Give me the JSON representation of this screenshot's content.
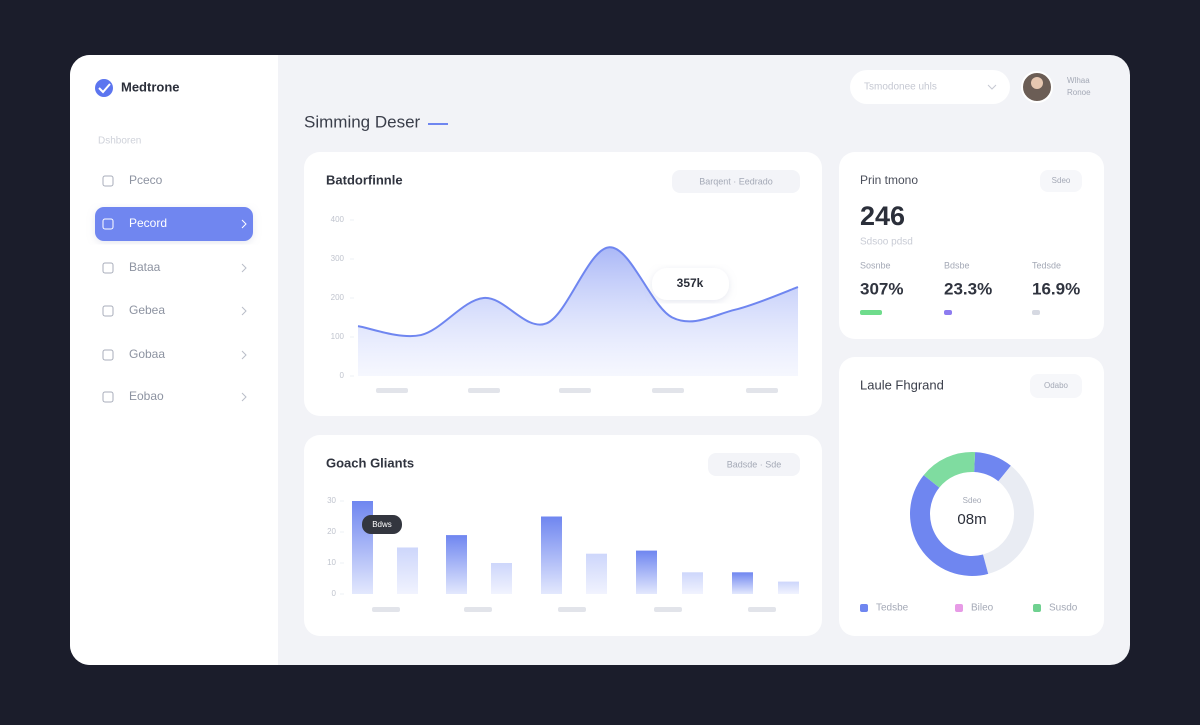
{
  "sidebar": {
    "brand": "Medtrone",
    "section": "Dshboren",
    "nav": [
      "Pceco",
      "Pecord",
      "Bataa",
      "Gebea",
      "Gobaa",
      "Eobao"
    ]
  },
  "topbar": {
    "search": "Tsmodonee uhls",
    "user_name": "Wlhaa",
    "user_role": "Ronoe"
  },
  "heading": "Simming Deser",
  "area_card": {
    "title": "Batdorfinnle",
    "filter": "Barqent · Eedrado",
    "chart": {
      "type": "area",
      "ylim": [
        0,
        400
      ],
      "yticks": [
        0,
        100,
        200,
        300,
        400
      ],
      "values": [
        128,
        105,
        200,
        135,
        330,
        150,
        170,
        228
      ],
      "color": "#6f86f0",
      "tooltip": "357k"
    }
  },
  "bar_card": {
    "title": "Goach Gliants",
    "filter": "Badsde · Sde",
    "chart": {
      "type": "bar",
      "ylim": [
        0,
        30
      ],
      "yticks": [
        0,
        10,
        20,
        30
      ],
      "values": [
        30,
        15,
        19,
        10,
        25,
        13,
        14,
        7,
        7,
        4
      ],
      "colors": [
        "#6f86f0",
        "#cdd6fb"
      ],
      "tooltip": "Bdws"
    }
  },
  "stats_card": {
    "title": "Prin tmono",
    "badge": "Sdeo",
    "total": "246",
    "subtitle": "Sdsoo pdsd",
    "stats": [
      {
        "label": "Sosnbe",
        "value": "307%",
        "color": "#6fdc8c"
      },
      {
        "label": "Bdsbe",
        "value": "23.3%",
        "color": "#8d7cf0"
      },
      {
        "label": "Tedsde",
        "value": "16.9%",
        "color": "#d6d9e2"
      }
    ]
  },
  "donut_card": {
    "title": "Laule Fhgrand",
    "badge": "Odabo",
    "center_label": "Sdeo",
    "center": "08m",
    "chart": {
      "type": "donut",
      "values": [
        10,
        35,
        40,
        15
      ],
      "colors": [
        "#6f86f0",
        "#e9ecf3",
        "#6f86f0",
        "#7fdca0"
      ]
    },
    "legend": [
      {
        "name": "Tedsbe",
        "color": "#6f86f0"
      },
      {
        "name": "Bileo",
        "color": "#e79be6"
      },
      {
        "name": "Susdo",
        "color": "#6fd190"
      }
    ]
  }
}
